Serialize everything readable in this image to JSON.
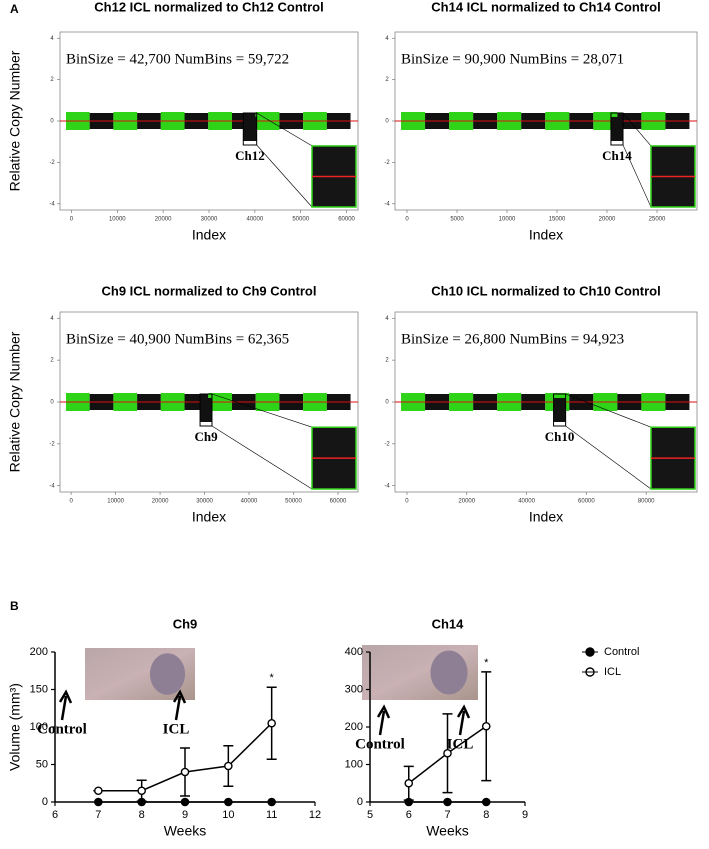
{
  "panel_labels": [
    "A",
    "B"
  ],
  "chart_data": [
    {
      "type": "scatter",
      "title": "Ch12 ICL normalized to Ch12 Control",
      "annotation": "BinSize = 42,700 NumBins = 59,722",
      "highlight_label": "Ch12",
      "xlabel": "Index",
      "ylabel": "Relative Copy Number",
      "xlim": [
        -2500,
        62500
      ],
      "xticks": [
        0,
        10000,
        20000,
        30000,
        40000,
        50000,
        60000
      ],
      "ylim": [
        -4.3,
        4.3
      ],
      "yticks": [
        -4,
        -2,
        0,
        2,
        4
      ]
    },
    {
      "type": "scatter",
      "title": "Ch14 ICL normalized to Ch14 Control",
      "annotation": "BinSize = 90,900 NumBins = 28,071",
      "highlight_label": "Ch14",
      "xlabel": "Index",
      "xlim": [
        -1200,
        29000
      ],
      "xticks": [
        0,
        5000,
        10000,
        15000,
        20000,
        25000
      ],
      "ylim": [
        -4.3,
        4.3
      ],
      "yticks": [
        -4,
        -2,
        0,
        2,
        4
      ]
    },
    {
      "type": "scatter",
      "title": "Ch9 ICL normalized to Ch9 Control",
      "annotation": "BinSize = 40,900 NumBins = 62,365",
      "highlight_label": "Ch9",
      "xlabel": "Index",
      "ylabel": "Relative Copy Number",
      "xlim": [
        -2500,
        64500
      ],
      "xticks": [
        0,
        10000,
        20000,
        30000,
        40000,
        50000,
        60000
      ],
      "ylim": [
        -4.3,
        4.3
      ],
      "yticks": [
        -4,
        -2,
        0,
        2,
        4
      ]
    },
    {
      "type": "scatter",
      "title": "Ch10 ICL normalized to Ch10 Control",
      "annotation": "BinSize = 26,800 NumBins = 94,923",
      "highlight_label": "Ch10",
      "xlabel": "Index",
      "xlim": [
        -4000,
        97000
      ],
      "xticks": [
        0,
        20000,
        40000,
        60000,
        80000
      ],
      "ylim": [
        -4.3,
        4.3
      ],
      "yticks": [
        -4,
        -2,
        0,
        2,
        4
      ]
    },
    {
      "type": "line",
      "title": "Ch9",
      "xlabel": "Weeks",
      "ylabel": "Volume (mm³)",
      "photo_labels": [
        "Control",
        "ICL"
      ],
      "annotation": "*",
      "x": [
        7,
        8,
        9,
        10,
        11
      ],
      "series": [
        {
          "color": "#000000",
          "marker": "filled",
          "values": [
            0,
            0,
            0,
            0,
            0
          ]
        },
        {
          "color": "#000000",
          "marker": "open",
          "values": [
            15,
            15,
            40,
            48,
            105
          ],
          "errors": [
            0,
            14,
            32,
            27,
            48
          ]
        }
      ],
      "xlim": [
        6,
        12
      ],
      "xticks": [
        6,
        7,
        8,
        9,
        10,
        11,
        12
      ],
      "ylim": [
        0,
        200
      ],
      "yticks": [
        0,
        50,
        100,
        150,
        200
      ]
    },
    {
      "type": "line",
      "title": "Ch14",
      "xlabel": "Weeks",
      "photo_labels": [
        "Control",
        "ICL"
      ],
      "annotation": "*",
      "x": [
        6,
        7,
        8
      ],
      "series": [
        {
          "name": "Control",
          "color": "#000000",
          "marker": "filled",
          "values": [
            0,
            0,
            0
          ]
        },
        {
          "name": "ICL",
          "color": "#000000",
          "marker": "open",
          "values": [
            50,
            130,
            202
          ],
          "errors": [
            45,
            105,
            145
          ]
        }
      ],
      "xlim": [
        5,
        9
      ],
      "xticks": [
        5,
        6,
        7,
        8,
        9
      ],
      "ylim": [
        0,
        400
      ],
      "yticks": [
        0,
        100,
        200,
        300,
        400
      ],
      "legend": "right"
    }
  ]
}
